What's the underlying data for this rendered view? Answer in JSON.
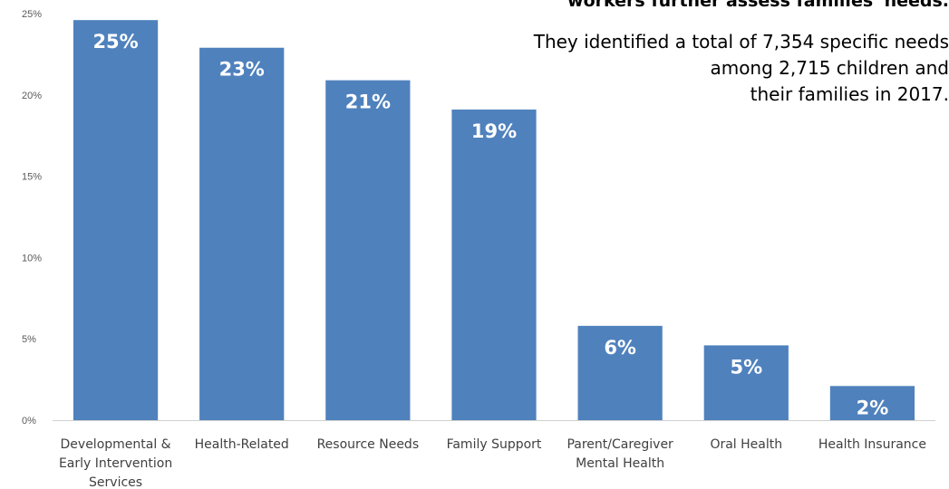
{
  "chart_data": {
    "type": "bar",
    "title": "workers further assess families' needs.",
    "subtitle_lines": [
      "They identified a total of 7,354 specific needs",
      "among 2,715 children and",
      "their families in 2017."
    ],
    "categories": [
      [
        "Developmental &",
        "Early Intervention",
        "Services"
      ],
      [
        "Health-Related"
      ],
      [
        "Resource Needs"
      ],
      [
        "Family Support"
      ],
      [
        "Parent/Caregiver",
        "Mental Health"
      ],
      [
        "Oral Health"
      ],
      [
        "Health Insurance"
      ]
    ],
    "values": [
      24.6,
      22.9,
      20.9,
      19.1,
      5.8,
      4.6,
      2.1
    ],
    "value_labels": [
      "25%",
      "23%",
      "21%",
      "19%",
      "6%",
      "5%",
      "2%"
    ],
    "yticks": [
      "0%",
      "5%",
      "10%",
      "15%",
      "20%",
      "25%"
    ],
    "ylim": [
      0,
      25
    ],
    "xlabel": "",
    "ylabel": "",
    "grid": false,
    "bar_color": "#4F81BD"
  }
}
